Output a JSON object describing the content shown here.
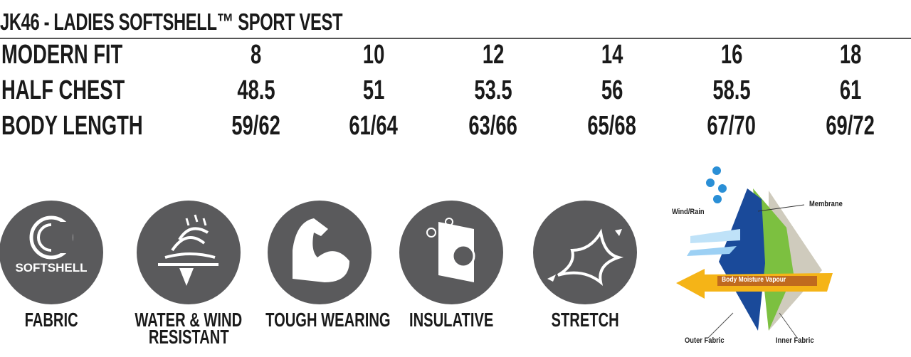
{
  "title": "JK46 - LADIES SOFTSHELL™ SPORT VEST",
  "size_table": {
    "rows": [
      {
        "label": "MODERN FIT",
        "values": [
          "8",
          "10",
          "12",
          "14",
          "16",
          "18"
        ]
      },
      {
        "label": "HALF CHEST",
        "values": [
          "48.5",
          "51",
          "53.5",
          "56",
          "58.5",
          "61"
        ]
      },
      {
        "label": "BODY LENGTH",
        "values": [
          "59/62",
          "61/64",
          "63/66",
          "65/68",
          "67/70",
          "69/72"
        ]
      }
    ]
  },
  "features": [
    {
      "icon": "softshell-icon",
      "icon_text": "SOFTSHELL",
      "label": "FABRIC"
    },
    {
      "icon": "water-wind-icon",
      "label": "WATER & WIND",
      "label2": "RESISTANT"
    },
    {
      "icon": "flexed-arm-icon",
      "label": "TOUGH WEARING"
    },
    {
      "icon": "insulation-icon",
      "label": "INSULATIVE"
    },
    {
      "icon": "stretch-icon",
      "label": "STRETCH"
    }
  ],
  "diagram": {
    "wind_rain": "Wind/Rain",
    "membrane": "Membrane",
    "vapour": "Body Moisture Vapour",
    "outer_fabric": "Outer Fabric",
    "inner_fabric": "Inner Fabric"
  },
  "colors": {
    "icon_bg": "#5a5a5c",
    "outer": "#1a4a9a",
    "membrane": "#7cc040",
    "inner": "#cfcbbd",
    "arrow": "#f5b417"
  }
}
